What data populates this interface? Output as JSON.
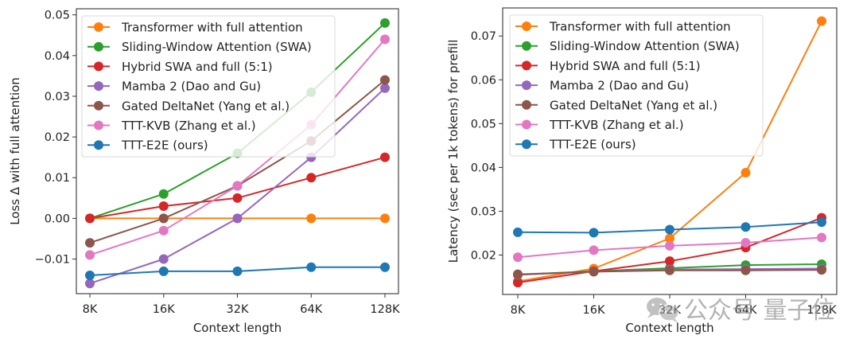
{
  "chart_data": [
    {
      "type": "line",
      "title": "",
      "xlabel": "Context length",
      "ylabel": "Loss Δ with full attention",
      "categories": [
        "8K",
        "16K",
        "32K",
        "64K",
        "128K"
      ],
      "ylim": [
        -0.0185,
        0.0515
      ],
      "yticks": [
        -0.01,
        0.0,
        0.01,
        0.02,
        0.03,
        0.04,
        0.05
      ],
      "ytick_labels": [
        "−0.01",
        "0.00",
        "0.01",
        "0.02",
        "0.03",
        "0.04",
        "0.05"
      ],
      "grid": false,
      "legend_position": "top-left",
      "series": [
        {
          "name": "Transformer with full attention",
          "color": "#ff7f0e",
          "values": [
            0.0,
            0.0,
            0.0,
            0.0,
            0.0
          ]
        },
        {
          "name": "Sliding-Window Attention (SWA)",
          "color": "#2ca02c",
          "values": [
            0.0,
            0.006,
            0.016,
            0.031,
            0.048
          ]
        },
        {
          "name": "Hybrid SWA and full (5:1)",
          "color": "#d62728",
          "values": [
            0.0,
            0.003,
            0.005,
            0.01,
            0.015
          ]
        },
        {
          "name": "Mamba 2 (Dao and Gu)",
          "color": "#9467bd",
          "values": [
            -0.016,
            -0.01,
            0.0,
            0.015,
            0.032
          ]
        },
        {
          "name": "Gated DeltaNet (Yang et al.)",
          "color": "#8c564b",
          "values": [
            -0.006,
            0.0,
            0.008,
            0.019,
            0.034
          ]
        },
        {
          "name": "TTT-KVB (Zhang et al.)",
          "color": "#e377c2",
          "values": [
            -0.009,
            -0.003,
            0.008,
            0.023,
            0.044
          ]
        },
        {
          "name": "TTT-E2E (ours)",
          "color": "#1f77b4",
          "values": [
            -0.014,
            -0.013,
            -0.013,
            -0.012,
            -0.012
          ]
        }
      ]
    },
    {
      "type": "line",
      "title": "",
      "xlabel": "Context length",
      "ylabel": "Latency (sec per 1k tokens) for prefill",
      "categories": [
        "8K",
        "16K",
        "32K",
        "64K",
        "128K"
      ],
      "ylim": [
        0.011,
        0.0764
      ],
      "yticks": [
        0.02,
        0.03,
        0.04,
        0.05,
        0.06,
        0.07
      ],
      "ytick_labels": [
        "0.02",
        "0.03",
        "0.04",
        "0.05",
        "0.06",
        "0.07"
      ],
      "grid": false,
      "legend_position": "top-left",
      "series": [
        {
          "name": "Transformer with full attention",
          "color": "#ff7f0e",
          "values": [
            0.014,
            0.0169,
            0.0238,
            0.0388,
            0.0734
          ]
        },
        {
          "name": "Sliding-Window Attention (SWA)",
          "color": "#2ca02c",
          "values": [
            0.0155,
            0.0163,
            0.017,
            0.0177,
            0.0179
          ]
        },
        {
          "name": "Hybrid SWA and full (5:1)",
          "color": "#d62728",
          "values": [
            0.0137,
            0.0163,
            0.0186,
            0.0217,
            0.0285
          ]
        },
        {
          "name": "Mamba 2 (Dao and Gu)",
          "color": "#9467bd",
          "values": [
            0.0155,
            0.0162,
            0.0167,
            0.0168,
            0.0169
          ]
        },
        {
          "name": "Gated DeltaNet (Yang et al.)",
          "color": "#8c564b",
          "values": [
            0.0156,
            0.0162,
            0.0165,
            0.0165,
            0.0166
          ]
        },
        {
          "name": "TTT-KVB (Zhang et al.)",
          "color": "#e377c2",
          "values": [
            0.0195,
            0.0211,
            0.0221,
            0.0228,
            0.024
          ]
        },
        {
          "name": "TTT-E2E (ours)",
          "color": "#1f77b4",
          "values": [
            0.0252,
            0.0251,
            0.0258,
            0.0264,
            0.0275
          ]
        }
      ]
    }
  ],
  "watermark": {
    "icon": "wechat-icon",
    "text": "公众号 量子位"
  }
}
